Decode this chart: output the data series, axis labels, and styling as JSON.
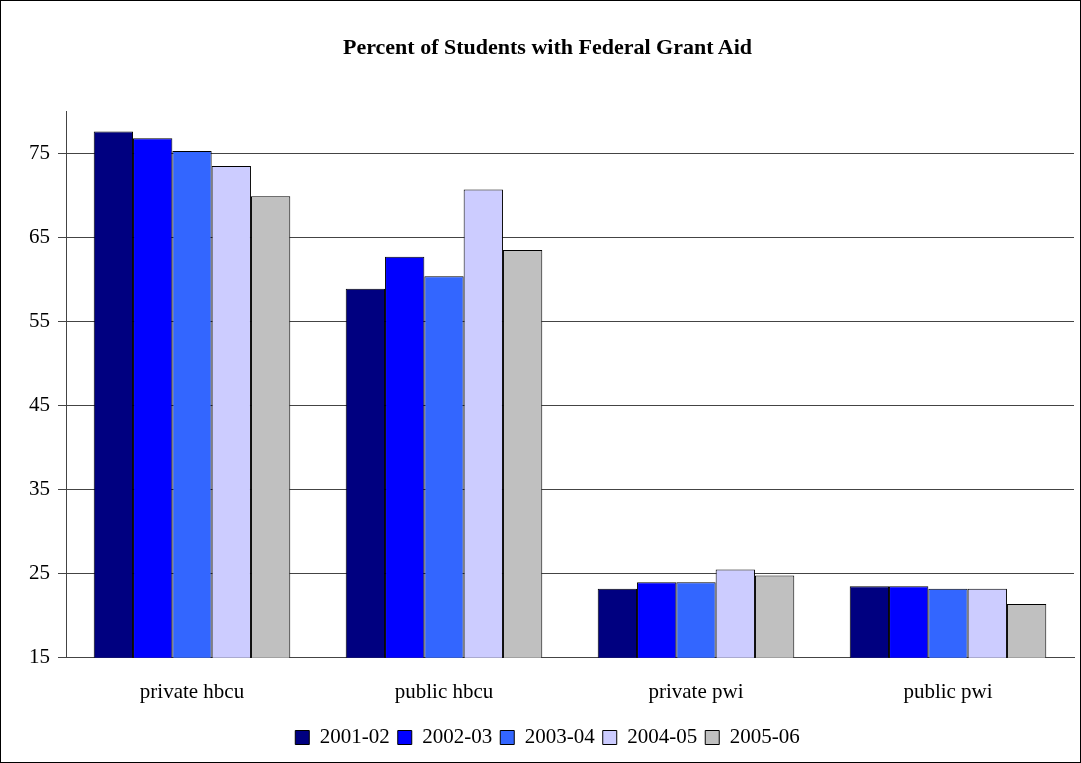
{
  "chart_data": {
    "type": "bar",
    "title": "Percent of Students with Federal Grant Aid",
    "categories": [
      "private hbcu",
      "public hbcu",
      "private pwi",
      "public pwi"
    ],
    "series": [
      {
        "name": "2001-02",
        "color": "#000080",
        "values": [
          77.6,
          58.9,
          23.2,
          23.5
        ]
      },
      {
        "name": "2002-03",
        "color": "#0000ff",
        "values": [
          76.8,
          62.7,
          24.0,
          23.5
        ]
      },
      {
        "name": "2003-04",
        "color": "#3366ff",
        "values": [
          75.3,
          60.4,
          24.0,
          23.2
        ]
      },
      {
        "name": "2004-05",
        "color": "#ccccff",
        "values": [
          73.5,
          70.7,
          25.5,
          23.2
        ]
      },
      {
        "name": "2005-06",
        "color": "#c0c0c0",
        "values": [
          69.9,
          63.5,
          24.8,
          21.4
        ]
      }
    ],
    "ylim": [
      15,
      80
    ],
    "yticks": [
      15,
      25,
      35,
      45,
      55,
      65,
      75
    ],
    "grid": "y",
    "legend": "bottom"
  }
}
